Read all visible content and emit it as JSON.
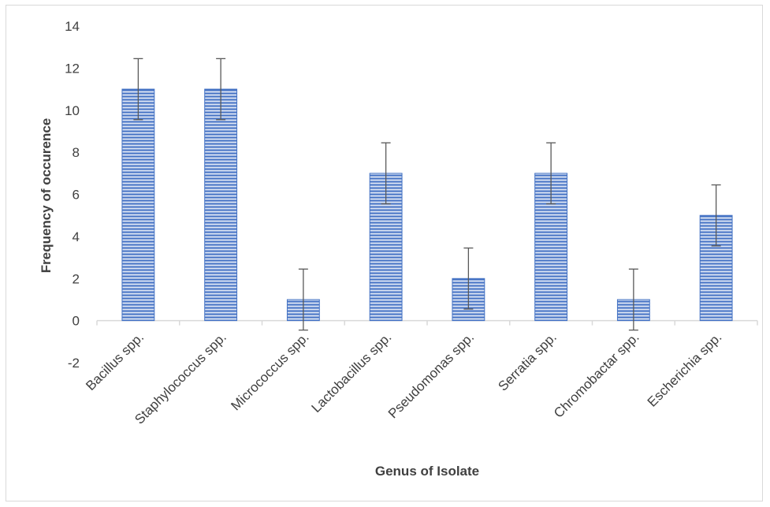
{
  "chart_data": {
    "type": "bar",
    "xlabel": "Genus of Isolate",
    "ylabel": "Frequency of occurence",
    "categories": [
      "Bacillus spp.",
      "Staphylococcus spp.",
      "Micrococcus spp.",
      "Lactobacillus spp.",
      "Pseudomonas spp.",
      "Serratia spp.",
      "Chromobactar spp.",
      "Escherichia spp."
    ],
    "values": [
      11,
      11,
      1,
      7,
      2,
      7,
      1,
      5
    ],
    "error": [
      1.45,
      1.45,
      1.45,
      1.45,
      1.45,
      1.45,
      1.45,
      1.45
    ],
    "ylim": [
      -2,
      14
    ],
    "yticks": [
      -2,
      0,
      2,
      4,
      6,
      8,
      10,
      12,
      14
    ],
    "grid": false,
    "legend": "none",
    "colors": {
      "bar_fill": "#dae3f3",
      "bar_stripe": "#4472c4",
      "axis": "#d9d9d9",
      "error_bar": "#595959",
      "text": "#404040"
    }
  }
}
